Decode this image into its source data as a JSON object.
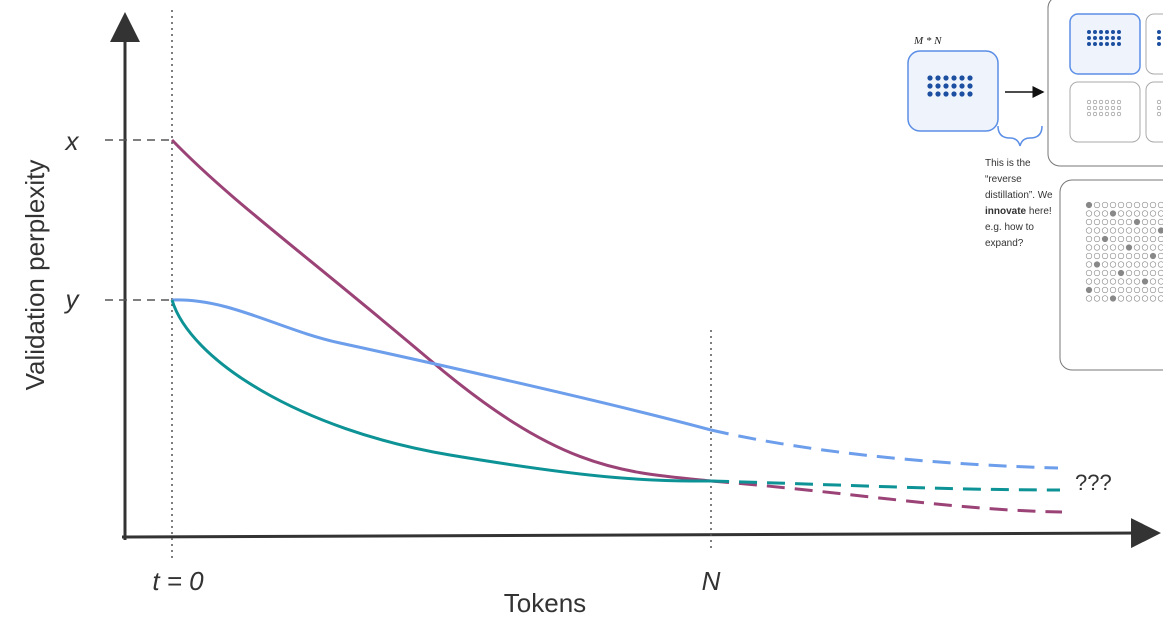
{
  "axes": {
    "y_label": "Validation perplexity",
    "x_label": "Tokens"
  },
  "markers": {
    "x": "x",
    "y": "y",
    "t0": "t = 0",
    "n": "N",
    "unknown": "???"
  },
  "inset": {
    "title": "M * N",
    "note": [
      "This is the",
      "“reverse",
      "distillation”. We",
      "innovate",
      " here!",
      "e.g. how to",
      "expand?"
    ]
  }
}
